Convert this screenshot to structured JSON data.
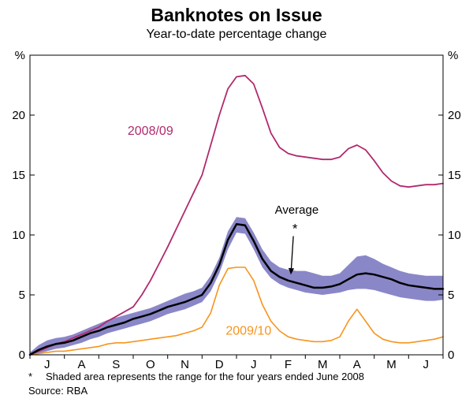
{
  "page": {
    "title": "Banknotes on Issue",
    "subtitle": "Year-to-date percentage change"
  },
  "footnote": {
    "marker": "*",
    "text": "Shaded area represents the range for the four years ended June 2008",
    "source": "Source: RBA"
  },
  "chart_data": {
    "type": "line",
    "title": "Banknotes on Issue",
    "subtitle": "Year-to-date percentage change",
    "unit_label": "%",
    "ylim": [
      0,
      25
    ],
    "yticks": [
      0,
      5,
      10,
      15,
      20
    ],
    "x_range": [
      0,
      12
    ],
    "x_month_labels": [
      "J",
      "A",
      "S",
      "O",
      "N",
      "D",
      "J",
      "F",
      "M",
      "A",
      "M",
      "J"
    ],
    "grid": false,
    "legend_position": "inline-labels",
    "x": [
      0,
      0.25,
      0.5,
      0.75,
      1,
      1.25,
      1.5,
      1.75,
      2,
      2.25,
      2.5,
      2.75,
      3,
      3.25,
      3.5,
      3.75,
      4,
      4.25,
      4.5,
      4.75,
      5,
      5.25,
      5.5,
      5.75,
      6,
      6.25,
      6.5,
      6.75,
      7,
      7.25,
      7.5,
      7.75,
      8,
      8.25,
      8.5,
      8.75,
      9,
      9.25,
      9.5,
      9.75,
      10,
      10.25,
      10.5,
      10.75,
      11,
      11.25,
      11.5,
      11.75,
      12
    ],
    "series": [
      {
        "name": "2008/09",
        "color": "#b02a6e",
        "width": 1.8,
        "values": [
          0,
          0.3,
          0.6,
          0.9,
          1.1,
          1.4,
          1.7,
          2.0,
          2.3,
          2.8,
          3.2,
          3.6,
          4.0,
          5.0,
          6.2,
          7.6,
          9.0,
          10.5,
          12.0,
          13.5,
          15.0,
          17.5,
          20.0,
          22.2,
          23.2,
          23.3,
          22.6,
          20.6,
          18.5,
          17.3,
          16.8,
          16.6,
          16.5,
          16.4,
          16.3,
          16.3,
          16.5,
          17.2,
          17.5,
          17.1,
          16.2,
          15.2,
          14.5,
          14.1,
          14.0,
          14.1,
          14.2,
          14.2,
          14.3
        ]
      },
      {
        "name": "2009/10",
        "color": "#f7941d",
        "width": 1.6,
        "values": [
          0,
          0.1,
          0.2,
          0.3,
          0.3,
          0.4,
          0.5,
          0.6,
          0.7,
          0.9,
          1.0,
          1.0,
          1.1,
          1.2,
          1.3,
          1.4,
          1.5,
          1.6,
          1.8,
          2.0,
          2.3,
          3.5,
          5.8,
          7.2,
          7.3,
          7.3,
          6.2,
          4.2,
          2.8,
          2.0,
          1.5,
          1.3,
          1.2,
          1.1,
          1.1,
          1.2,
          1.5,
          2.8,
          3.8,
          2.8,
          1.8,
          1.3,
          1.1,
          1.0,
          1.0,
          1.1,
          1.2,
          1.3,
          1.5
        ]
      },
      {
        "name": "Average",
        "color": "#000000",
        "width": 2.5,
        "values": [
          0,
          0.4,
          0.7,
          0.9,
          1.0,
          1.2,
          1.5,
          1.8,
          2.0,
          2.3,
          2.5,
          2.7,
          3.0,
          3.2,
          3.4,
          3.7,
          4.0,
          4.2,
          4.4,
          4.7,
          5.0,
          6.0,
          7.5,
          9.6,
          10.9,
          10.8,
          9.5,
          8.0,
          7.0,
          6.5,
          6.2,
          6.0,
          5.8,
          5.6,
          5.6,
          5.7,
          5.9,
          6.3,
          6.7,
          6.8,
          6.7,
          6.5,
          6.3,
          6.0,
          5.8,
          5.7,
          5.6,
          5.5,
          5.5
        ]
      }
    ],
    "band": {
      "name": "four-year range ended June 2008",
      "color": "#8a87c8",
      "upper": [
        0.2,
        0.8,
        1.2,
        1.4,
        1.5,
        1.7,
        2.0,
        2.3,
        2.6,
        2.9,
        3.1,
        3.3,
        3.5,
        3.7,
        3.9,
        4.2,
        4.5,
        4.8,
        5.1,
        5.3,
        5.6,
        6.6,
        8.1,
        10.3,
        11.5,
        11.4,
        10.2,
        8.8,
        7.8,
        7.3,
        7.1,
        7.0,
        7.0,
        6.8,
        6.6,
        6.6,
        6.8,
        7.5,
        8.2,
        8.3,
        8.0,
        7.6,
        7.3,
        7.0,
        6.8,
        6.7,
        6.6,
        6.6,
        6.6
      ],
      "lower": [
        0,
        0.1,
        0.3,
        0.5,
        0.6,
        0.8,
        1.0,
        1.3,
        1.5,
        1.8,
        2.0,
        2.2,
        2.4,
        2.6,
        2.8,
        3.1,
        3.4,
        3.6,
        3.8,
        4.1,
        4.4,
        5.3,
        6.8,
        8.8,
        10.2,
        10.1,
        8.8,
        7.3,
        6.4,
        5.9,
        5.6,
        5.4,
        5.2,
        5.1,
        5.0,
        5.1,
        5.2,
        5.4,
        5.5,
        5.5,
        5.4,
        5.2,
        5.0,
        4.8,
        4.7,
        4.6,
        4.5,
        4.5,
        4.6
      ]
    },
    "series_labels": [
      {
        "text": "2008/09",
        "x": 3.5,
        "y": 18.7,
        "color": "#b02a6e",
        "size": 16
      },
      {
        "text": "2009/10",
        "x": 6.35,
        "y": 2.0,
        "color": "#f7941d",
        "size": 16
      }
    ],
    "annotation": {
      "text": "Average",
      "text_x": 7.75,
      "text_y": 12.1,
      "star": "*",
      "star_x": 7.7,
      "star_y": 10.55,
      "arrow_from": [
        7.65,
        9.9
      ],
      "arrow_to": [
        7.58,
        6.7
      ]
    }
  }
}
